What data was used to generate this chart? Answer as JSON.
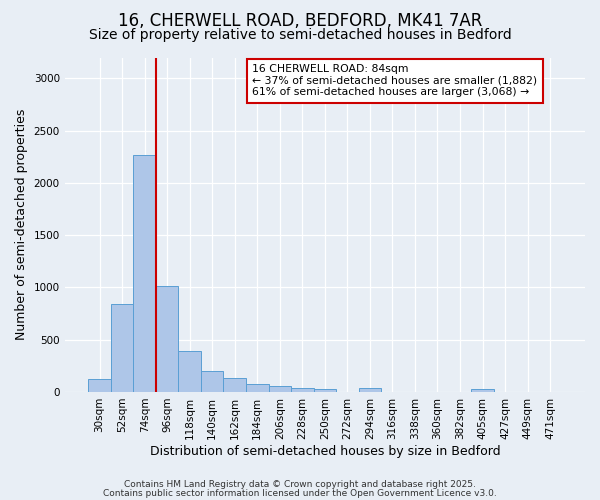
{
  "title_line1": "16, CHERWELL ROAD, BEDFORD, MK41 7AR",
  "title_line2": "Size of property relative to semi-detached houses in Bedford",
  "xlabel": "Distribution of semi-detached houses by size in Bedford",
  "ylabel": "Number of semi-detached properties",
  "bar_labels": [
    "30sqm",
    "52sqm",
    "74sqm",
    "96sqm",
    "118sqm",
    "140sqm",
    "162sqm",
    "184sqm",
    "206sqm",
    "228sqm",
    "250sqm",
    "272sqm",
    "294sqm",
    "316sqm",
    "338sqm",
    "360sqm",
    "382sqm",
    "405sqm",
    "427sqm",
    "449sqm",
    "471sqm"
  ],
  "bar_values": [
    120,
    840,
    2270,
    1010,
    390,
    200,
    130,
    80,
    55,
    40,
    25,
    0,
    35,
    0,
    0,
    0,
    0,
    30,
    0,
    0,
    0
  ],
  "bar_color": "#aec6e8",
  "bar_edge_color": "#5a9fd4",
  "vline_color": "#cc0000",
  "annotation_text": "16 CHERWELL ROAD: 84sqm\n← 37% of semi-detached houses are smaller (1,882)\n61% of semi-detached houses are larger (3,068) →",
  "annotation_box_color": "#ffffff",
  "annotation_box_edge": "#cc0000",
  "ylim": [
    0,
    3200
  ],
  "yticks": [
    0,
    500,
    1000,
    1500,
    2000,
    2500,
    3000
  ],
  "bg_color": "#e8eef5",
  "plot_bg_color": "#e8eef5",
  "footer_line1": "Contains HM Land Registry data © Crown copyright and database right 2025.",
  "footer_line2": "Contains public sector information licensed under the Open Government Licence v3.0.",
  "title_fontsize": 12,
  "subtitle_fontsize": 10,
  "tick_fontsize": 7.5,
  "label_fontsize": 9,
  "footer_fontsize": 6.5
}
